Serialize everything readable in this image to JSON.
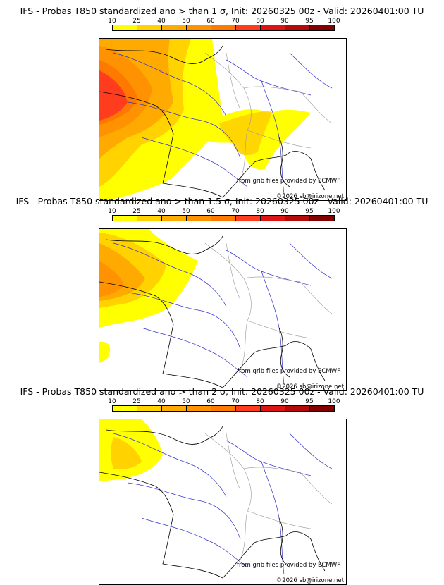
{
  "colorbar": {
    "ticks": [
      "10",
      "25",
      "40",
      "50",
      "60",
      "70",
      "80",
      "90",
      "95",
      "100"
    ],
    "colors": [
      "#ffff00",
      "#ffd200",
      "#ffaa00",
      "#ff9200",
      "#ff7800",
      "#ff3c1e",
      "#dc1414",
      "#b40a0a",
      "#820000"
    ]
  },
  "panels": [
    {
      "title": "IFS - Probas T850  standardized ano > than 1 σ, Init: 20260325 00z - Valid: 20260401:00 TU",
      "source_credit": "from grib files provided by ECMWF",
      "copyright": "©2026 sb@irizone.net"
    },
    {
      "title": "IFS - Probas T850  standardized ano > than 1.5 σ, Init: 20260325 00z - Valid: 20260401:00 TU",
      "source_credit": "from grib files provided by ECMWF",
      "copyright": "©2026 sb@irizone.net"
    },
    {
      "title": "IFS - Probas T850  standardized ano > than 2 σ, Init: 20260325 00z - Valid: 20260401:00 TU",
      "source_credit": "from grib files provided by ECMWF",
      "copyright": "©2026 sb@irizone.net"
    }
  ]
}
